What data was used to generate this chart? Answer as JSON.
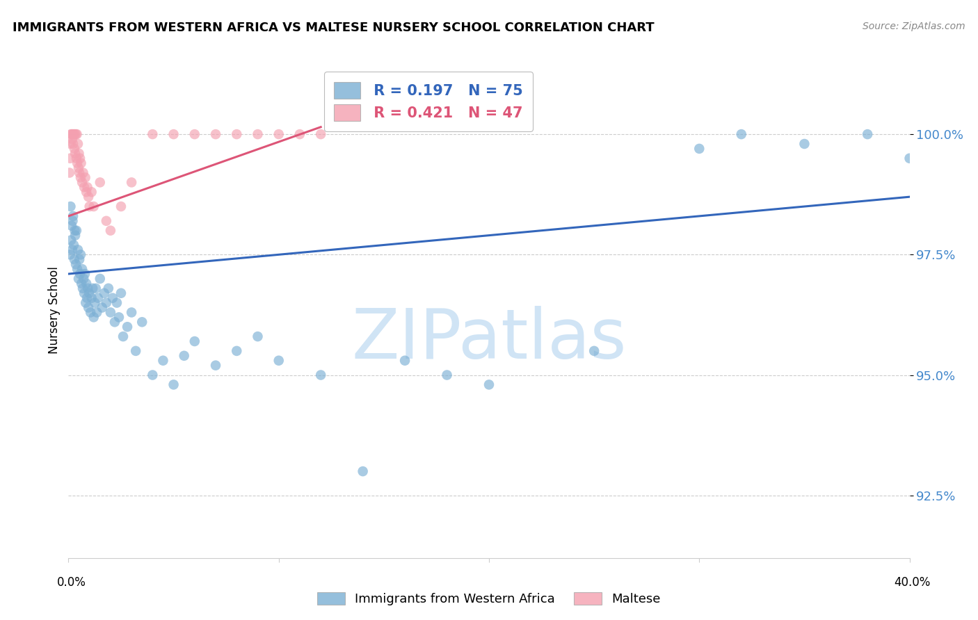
{
  "title": "IMMIGRANTS FROM WESTERN AFRICA VS MALTESE NURSERY SCHOOL CORRELATION CHART",
  "source": "Source: ZipAtlas.com",
  "ylabel": "Nursery School",
  "yaxis_values": [
    100.0,
    97.5,
    95.0,
    92.5
  ],
  "xlim": [
    0.0,
    40.0
  ],
  "ylim": [
    91.2,
    101.5
  ],
  "legend_blue_r": "0.197",
  "legend_blue_n": "75",
  "legend_pink_r": "0.421",
  "legend_pink_n": "47",
  "blue_color": "#7bafd4",
  "pink_color": "#f4a0b0",
  "trendline_blue_color": "#3366bb",
  "trendline_pink_color": "#dd5577",
  "blue_marker_edge": "#7bafd4",
  "pink_marker_edge": "#f4a0b0",
  "watermark_color": "#d0e4f5",
  "grid_color": "#cccccc",
  "right_label_color": "#4488cc",
  "blue_trend_x0": 0.0,
  "blue_trend_y0": 97.1,
  "blue_trend_x1": 40.0,
  "blue_trend_y1": 98.7,
  "pink_trend_x0": 0.0,
  "pink_trend_y0": 98.3,
  "pink_trend_x1": 12.0,
  "pink_trend_y1": 100.15,
  "blue_scatter_x": [
    0.08,
    0.12,
    0.15,
    0.18,
    0.22,
    0.25,
    0.28,
    0.32,
    0.35,
    0.38,
    0.42,
    0.45,
    0.48,
    0.52,
    0.55,
    0.58,
    0.62,
    0.65,
    0.68,
    0.72,
    0.75,
    0.78,
    0.82,
    0.85,
    0.88,
    0.92,
    0.95,
    0.98,
    1.05,
    1.1,
    1.15,
    1.2,
    1.25,
    1.3,
    1.35,
    1.4,
    1.5,
    1.6,
    1.7,
    1.8,
    1.9,
    2.0,
    2.1,
    2.2,
    2.3,
    2.4,
    2.5,
    2.6,
    2.8,
    3.0,
    3.2,
    3.5,
    4.0,
    4.5,
    5.0,
    5.5,
    6.0,
    7.0,
    8.0,
    9.0,
    10.0,
    12.0,
    14.0,
    16.0,
    18.0,
    20.0,
    25.0,
    30.0,
    32.0,
    35.0,
    38.0,
    40.0,
    0.1,
    0.2,
    0.3
  ],
  "blue_scatter_y": [
    97.5,
    97.8,
    98.1,
    97.6,
    98.3,
    97.7,
    97.4,
    97.9,
    97.3,
    98.0,
    97.2,
    97.6,
    97.0,
    97.4,
    97.1,
    97.5,
    96.9,
    97.2,
    96.8,
    97.0,
    96.7,
    97.1,
    96.5,
    96.9,
    96.6,
    96.8,
    96.4,
    96.7,
    96.3,
    96.6,
    96.8,
    96.2,
    96.5,
    96.8,
    96.3,
    96.6,
    97.0,
    96.4,
    96.7,
    96.5,
    96.8,
    96.3,
    96.6,
    96.1,
    96.5,
    96.2,
    96.7,
    95.8,
    96.0,
    96.3,
    95.5,
    96.1,
    95.0,
    95.3,
    94.8,
    95.4,
    95.7,
    95.2,
    95.5,
    95.8,
    95.3,
    95.0,
    93.0,
    95.3,
    95.0,
    94.8,
    95.5,
    99.7,
    100.0,
    99.8,
    100.0,
    99.5,
    98.5,
    98.2,
    98.0
  ],
  "pink_scatter_x": [
    0.05,
    0.08,
    0.1,
    0.12,
    0.15,
    0.18,
    0.2,
    0.22,
    0.25,
    0.28,
    0.3,
    0.32,
    0.35,
    0.38,
    0.4,
    0.42,
    0.45,
    0.48,
    0.5,
    0.52,
    0.55,
    0.58,
    0.6,
    0.65,
    0.7,
    0.75,
    0.8,
    0.85,
    0.9,
    0.95,
    1.0,
    1.1,
    1.2,
    1.5,
    1.8,
    2.0,
    2.5,
    3.0,
    4.0,
    5.0,
    6.0,
    7.0,
    8.0,
    9.0,
    10.0,
    11.0,
    12.0
  ],
  "pink_scatter_y": [
    99.2,
    99.5,
    99.8,
    100.0,
    100.0,
    99.9,
    100.0,
    99.8,
    100.0,
    99.7,
    100.0,
    99.6,
    100.0,
    99.5,
    100.0,
    99.4,
    99.8,
    99.3,
    99.6,
    99.2,
    99.5,
    99.1,
    99.4,
    99.0,
    99.2,
    98.9,
    99.1,
    98.8,
    98.9,
    98.7,
    98.5,
    98.8,
    98.5,
    99.0,
    98.2,
    98.0,
    98.5,
    99.0,
    100.0,
    100.0,
    100.0,
    100.0,
    100.0,
    100.0,
    100.0,
    100.0,
    100.0
  ]
}
